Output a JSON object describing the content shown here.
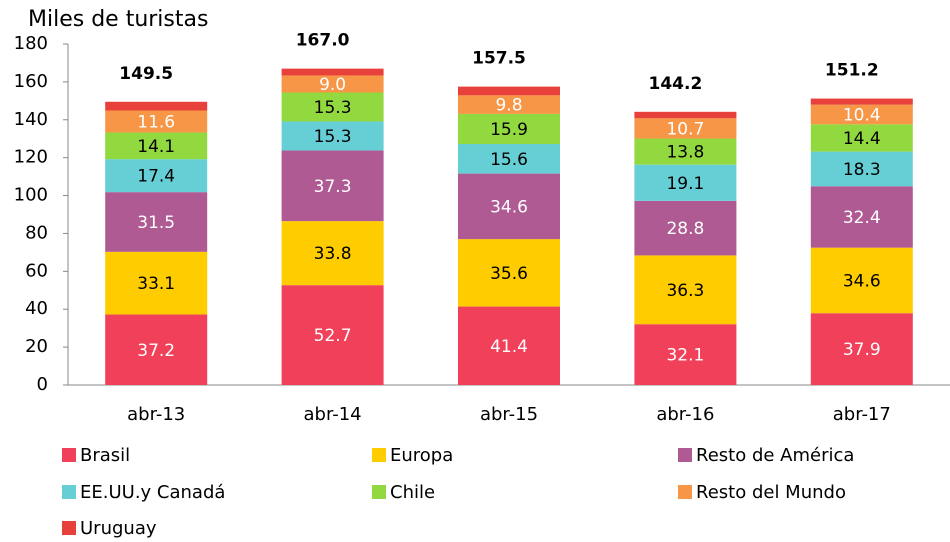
{
  "chart_data": {
    "type": "stacked_bar",
    "title": "Miles de turistas",
    "categories": [
      "abr-13",
      "abr-14",
      "abr-15",
      "abr-16",
      "abr-17"
    ],
    "series": [
      {
        "name": "Brasil",
        "color": "#f0405a",
        "label_color": "#ffffff",
        "values": [
          37.2,
          52.7,
          41.4,
          32.1,
          37.9
        ]
      },
      {
        "name": "Europa",
        "color": "#ffcc00",
        "label_color": "#000000",
        "values": [
          33.1,
          33.8,
          35.6,
          36.3,
          34.6
        ]
      },
      {
        "name": "Resto de América",
        "color": "#b05a93",
        "label_color": "#ffffff",
        "values": [
          31.5,
          37.3,
          34.6,
          28.8,
          32.4
        ]
      },
      {
        "name": "EE.UU.y Canadá",
        "color": "#66cfd6",
        "label_color": "#000000",
        "values": [
          17.4,
          15.3,
          15.6,
          19.1,
          18.3
        ]
      },
      {
        "name": "Chile",
        "color": "#92d940",
        "label_color": "#000000",
        "values": [
          14.1,
          15.3,
          15.9,
          13.8,
          14.4
        ]
      },
      {
        "name": "Resto del Mundo",
        "color": "#f79646",
        "label_color": "#ffffff",
        "values": [
          11.6,
          9.0,
          9.8,
          10.7,
          10.4
        ],
        "value_labels": [
          "11.6",
          "9.0",
          "9.8",
          "10.7",
          "10.4"
        ]
      },
      {
        "name": "Uruguay",
        "color": "#e8403a",
        "values": [
          4.6,
          3.6,
          4.6,
          3.4,
          3.2
        ]
      }
    ],
    "totals": [
      149.5,
      167.0,
      157.5,
      144.2,
      151.2
    ],
    "total_labels": [
      "149.5",
      "167.0",
      "157.5",
      "144.2",
      "151.2"
    ],
    "ylim": [
      0,
      180
    ],
    "yticks": [
      0,
      20,
      40,
      60,
      80,
      100,
      120,
      140,
      160,
      180
    ]
  }
}
